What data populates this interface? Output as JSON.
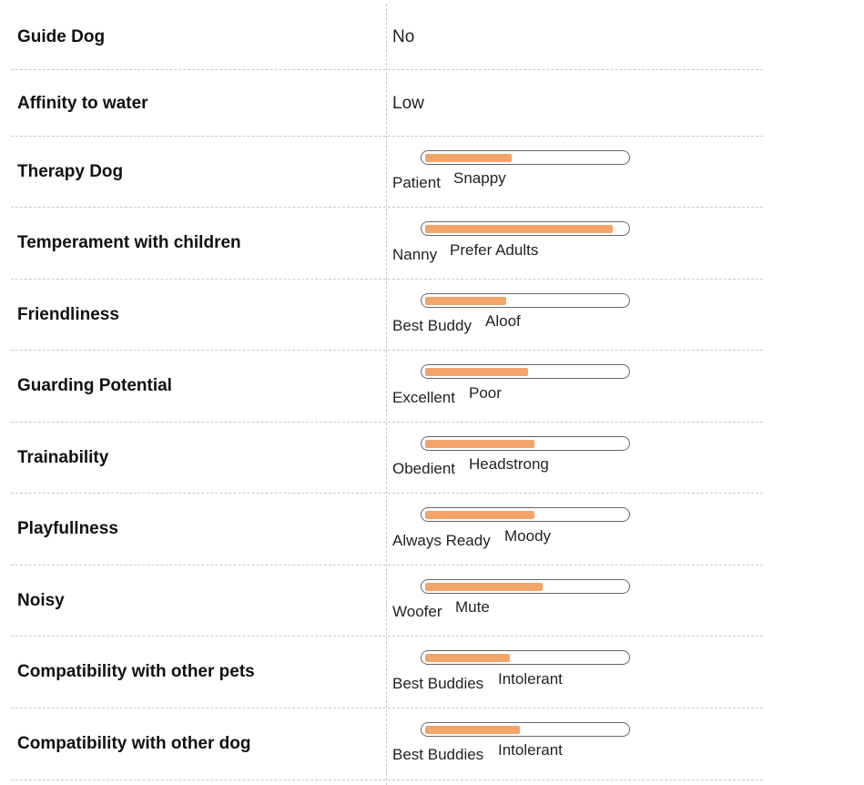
{
  "rows": [
    {
      "label": "Guide Dog",
      "value": "No"
    },
    {
      "label": "Affinity to water",
      "value": "Low"
    },
    {
      "label": "Therapy Dog",
      "left": "Patient",
      "right": "Snappy",
      "level": 0.43
    },
    {
      "label": "Temperament with children",
      "left": "Nanny",
      "right": "Prefer Adults",
      "level": 0.93
    },
    {
      "label": "Friendliness",
      "left": "Best Buddy",
      "right": "Aloof",
      "level": 0.4
    },
    {
      "label": "Guarding Potential",
      "left": "Excellent",
      "right": "Poor",
      "level": 0.51
    },
    {
      "label": "Trainability",
      "left": "Obedient",
      "right": "Headstrong",
      "level": 0.54
    },
    {
      "label": "Playfullness",
      "left": "Always Ready",
      "right": "Moody",
      "level": 0.54
    },
    {
      "label": "Noisy",
      "left": "Woofer",
      "right": "Mute",
      "level": 0.58
    },
    {
      "label": "Compatibility with other pets",
      "left": "Best Buddies",
      "right": "Intolerant",
      "level": 0.42
    },
    {
      "label": "Compatibility with other dog",
      "left": "Best Buddies",
      "right": "Intolerant",
      "level": 0.47
    }
  ],
  "colors": {
    "meter_fill": "#f3a56a",
    "meter_border": "#666666",
    "divider": "#c8c8c8"
  }
}
